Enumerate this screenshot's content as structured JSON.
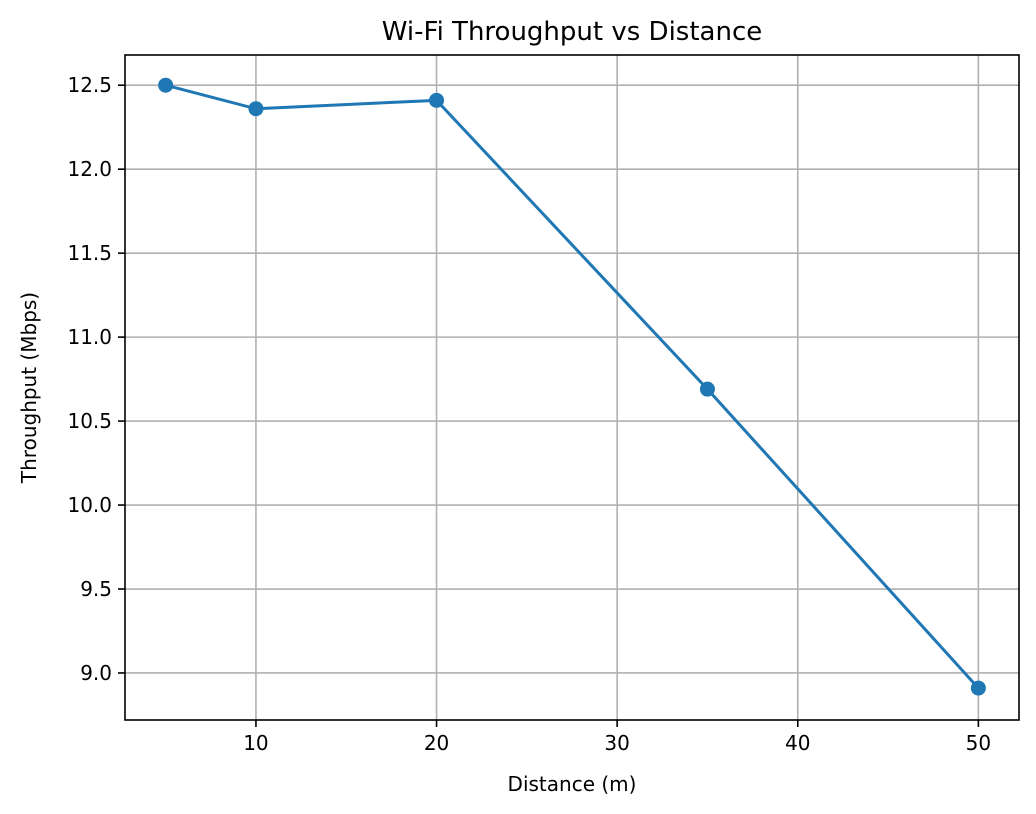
{
  "chart_data": {
    "type": "line",
    "title": "Wi-Fi Throughput vs Distance",
    "xlabel": "Distance (m)",
    "ylabel": "Throughput (Mbps)",
    "xlim": [
      2.75,
      52.25
    ],
    "ylim": [
      8.72,
      12.68
    ],
    "xticks": [
      10,
      20,
      30,
      40,
      50
    ],
    "yticks": [
      9.0,
      9.5,
      10.0,
      10.5,
      11.0,
      11.5,
      12.0,
      12.5
    ],
    "ytick_labels": [
      "9.0",
      "9.5",
      "10.0",
      "10.5",
      "11.0",
      "11.5",
      "12.0",
      "12.5"
    ],
    "grid": true,
    "legend": "none",
    "series": [
      {
        "color": "#1f77b4",
        "marker": "circle",
        "x": [
          5,
          10,
          20,
          35,
          50
        ],
        "y": [
          12.5,
          12.36,
          12.41,
          10.69,
          8.91
        ]
      }
    ]
  }
}
